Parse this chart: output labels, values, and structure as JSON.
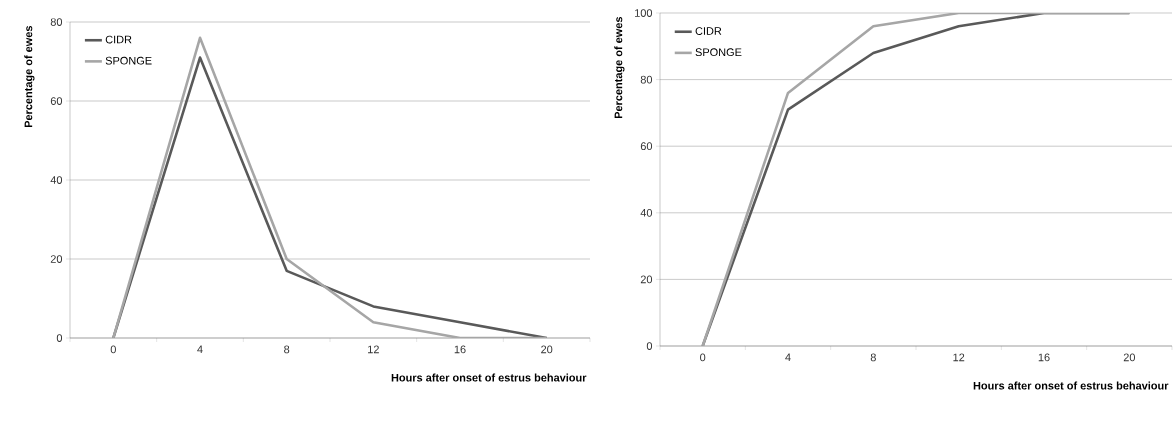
{
  "chart_data": [
    {
      "type": "line",
      "xlabel": "Hours after onset of estrus behaviour",
      "ylabel": "Percentage of ewes",
      "categories": [
        "0",
        "4",
        "8",
        "12",
        "16",
        "20"
      ],
      "ylim": [
        0,
        80
      ],
      "yticks": [
        0,
        20,
        40,
        60,
        80
      ],
      "grid": "y",
      "legend": "top left",
      "series": [
        {
          "name": "CIDR",
          "color": "#595959",
          "values": [
            0,
            71,
            17,
            8,
            4,
            0
          ]
        },
        {
          "name": "SPONGE",
          "color": "#a6a6a6",
          "values": [
            0,
            76,
            20,
            4,
            0,
            0
          ]
        }
      ]
    },
    {
      "type": "line",
      "xlabel": "Hours after onset of estrus behaviour",
      "ylabel": "Percentage of ewes",
      "categories": [
        "0",
        "4",
        "8",
        "12",
        "16",
        "20"
      ],
      "ylim": [
        0,
        100
      ],
      "yticks": [
        0,
        20,
        40,
        60,
        80,
        100
      ],
      "grid": "y",
      "legend": "top left",
      "series": [
        {
          "name": "CIDR",
          "color": "#595959",
          "values": [
            0,
            71,
            88,
            96,
            100,
            100
          ]
        },
        {
          "name": "SPONGE",
          "color": "#a6a6a6",
          "values": [
            0,
            76,
            96,
            100,
            100,
            100
          ]
        }
      ]
    }
  ]
}
